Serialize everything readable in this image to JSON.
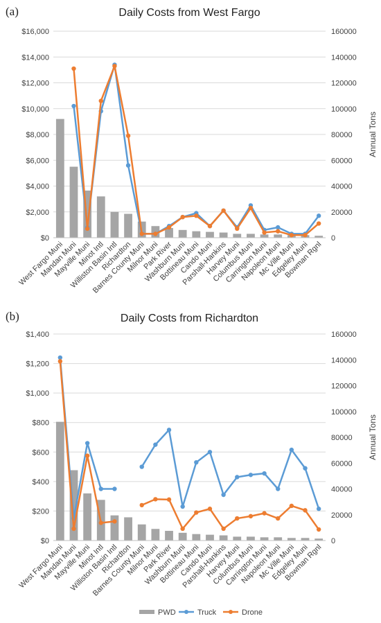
{
  "chart_data": [
    {
      "type": "bar",
      "panel_label": "(a)",
      "title": "Daily Costs from West Fargo",
      "xlabel": "",
      "ylabel_left": "",
      "ylabel_right": "Annual Tons",
      "ylim_left": [
        0,
        16000
      ],
      "ylim_right": [
        0,
        160000
      ],
      "yticks_left": [
        "$0",
        "$2,000",
        "$4,000",
        "$6,000",
        "$8,000",
        "$10,000",
        "$12,000",
        "$14,000",
        "$16,000"
      ],
      "yticks_right": [
        "0",
        "20000",
        "40000",
        "60000",
        "80000",
        "100000",
        "120000",
        "140000",
        "160000"
      ],
      "grid": true,
      "categories": [
        "West Fargo Muni",
        "Mandan Muni",
        "Mayville Muni",
        "Minot Intl",
        "Williston Basin Intl",
        "Richardton",
        "Barnes County Muni",
        "Milnor Muni",
        "Park River",
        "Washburn Muni",
        "Bottineau Muni",
        "Cando Muni",
        "Parshall-Hankins",
        "Harvey Muni",
        "Columbus Muni",
        "Carrington Muni",
        "Napoleon Muni",
        "Mc Ville Muni",
        "Edgeley Muni",
        "Bowman Rgnl"
      ],
      "series": [
        {
          "name": "PWD",
          "kind": "bar",
          "axis": "right",
          "color": "#a5a5a5",
          "values": [
            92000,
            55000,
            36500,
            32000,
            20000,
            18500,
            12500,
            9000,
            7500,
            6000,
            5000,
            4500,
            4000,
            3000,
            3000,
            2500,
            2500,
            2000,
            2000,
            1500
          ]
        },
        {
          "name": "Truck",
          "kind": "line",
          "axis": "left",
          "color": "#5b9bd5",
          "values": [
            null,
            10200,
            800,
            9800,
            13400,
            5600,
            300,
            300,
            900,
            1600,
            1900,
            900,
            2100,
            800,
            2500,
            600,
            800,
            300,
            300,
            1700
          ]
        },
        {
          "name": "Drone",
          "kind": "line",
          "axis": "left",
          "color": "#ed7d31",
          "values": [
            null,
            13100,
            700,
            10600,
            13300,
            7900,
            300,
            300,
            800,
            1600,
            1700,
            900,
            2100,
            700,
            2300,
            400,
            500,
            200,
            200,
            1100
          ]
        }
      ]
    },
    {
      "type": "bar",
      "panel_label": "(b)",
      "title": "Daily Costs from Richardton",
      "xlabel": "",
      "ylabel_left": "",
      "ylabel_right": "Annual Tons",
      "ylim_left": [
        0,
        1400
      ],
      "ylim_right": [
        0,
        160000
      ],
      "yticks_left": [
        "$0",
        "$200",
        "$400",
        "$600",
        "$800",
        "$1,000",
        "$1,200",
        "$1,400"
      ],
      "yticks_right": [
        "0",
        "20000",
        "40000",
        "60000",
        "80000",
        "100000",
        "120000",
        "140000",
        "160000"
      ],
      "grid": true,
      "categories": [
        "West Fargo Muni",
        "Mandan Muni",
        "Mayville Muni",
        "Minot Intl",
        "Williston Basin Intl",
        "Richardton",
        "Barnes County Muni",
        "Milnor Muni",
        "Park River",
        "Washburn Muni",
        "Bottineau Muni",
        "Cando Muni",
        "Parshall-Hankins",
        "Harvey Muni",
        "Columbus Muni",
        "Carrington Muni",
        "Napoleon Muni",
        "Mc Ville Muni",
        "Edgeley Muni",
        "Bowman Rgnl"
      ],
      "series": [
        {
          "name": "PWD",
          "kind": "bar",
          "axis": "right",
          "color": "#a5a5a5",
          "values": [
            92000,
            54500,
            36500,
            31500,
            19500,
            18000,
            12500,
            9000,
            7500,
            6000,
            5000,
            4500,
            4000,
            3000,
            3000,
            2500,
            2500,
            2000,
            2000,
            1500
          ]
        },
        {
          "name": "Truck",
          "kind": "line",
          "axis": "left",
          "color": "#5b9bd5",
          "values": [
            1240,
            150,
            660,
            350,
            350,
            null,
            500,
            650,
            750,
            230,
            530,
            600,
            310,
            430,
            445,
            455,
            350,
            615,
            490,
            215
          ]
        },
        {
          "name": "Drone",
          "kind": "line",
          "axis": "left",
          "color": "#ed7d31",
          "values": [
            1215,
            80,
            575,
            120,
            130,
            null,
            240,
            280,
            278,
            80,
            190,
            215,
            80,
            150,
            165,
            185,
            150,
            235,
            205,
            75
          ]
        }
      ]
    }
  ],
  "legend": {
    "placement": "bottom",
    "items": [
      {
        "label": "PWD",
        "color": "#a5a5a5",
        "kind": "bar"
      },
      {
        "label": "Truck",
        "color": "#5b9bd5",
        "kind": "line"
      },
      {
        "label": "Drone",
        "color": "#ed7d31",
        "kind": "line"
      }
    ]
  }
}
